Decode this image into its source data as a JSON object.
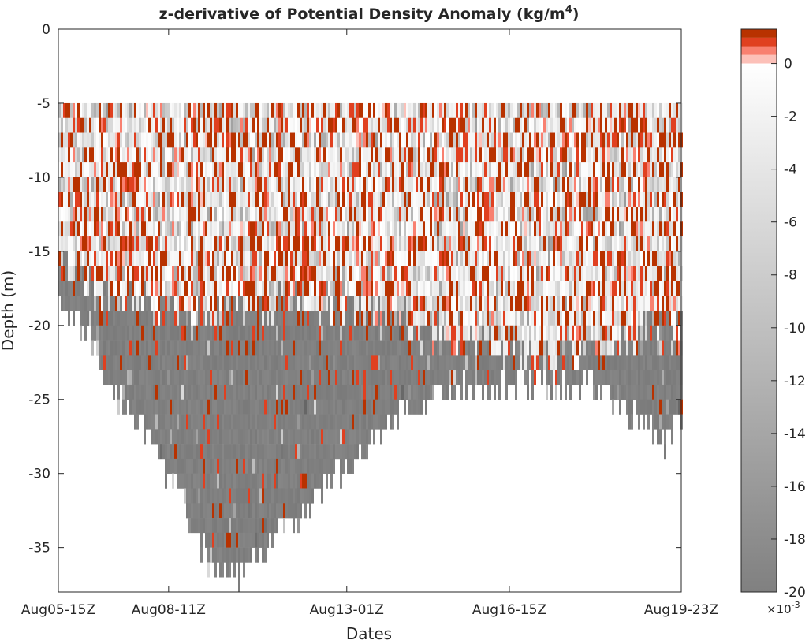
{
  "chart_data": {
    "type": "heatmap",
    "title": "z-derivative of Potential Density Anomaly (kg/m",
    "title_superscript": "4",
    "title_suffix": ")",
    "xlabel": "Dates",
    "ylabel": "Depth  (m)",
    "xlim": [
      0,
      100
    ],
    "ylim": [
      -38,
      0
    ],
    "x_ticks": [
      {
        "value": 0,
        "label": "Aug05-15Z"
      },
      {
        "value": 17.7,
        "label": "Aug08-11Z"
      },
      {
        "value": 46.3,
        "label": "Aug13-01Z"
      },
      {
        "value": 72.4,
        "label": "Aug16-15Z"
      },
      {
        "value": 100,
        "label": "Aug19-23Z"
      }
    ],
    "y_ticks": [
      0,
      -5,
      -10,
      -15,
      -20,
      -25,
      -30,
      -35
    ],
    "y_tick_labels": [
      "0",
      "-5",
      "-10",
      "-15",
      "-20",
      "-25",
      "-30",
      "-35"
    ],
    "top_depth": -5,
    "bottom_depth_profile": {
      "x": [
        0,
        5,
        10,
        15,
        20,
        24,
        28,
        33,
        38,
        45,
        52,
        58,
        65,
        75,
        85,
        92,
        97,
        100
      ],
      "depth": [
        -18,
        -21,
        -25,
        -28,
        -32,
        -36,
        -37,
        -35,
        -33,
        -30,
        -27,
        -25,
        -24,
        -24,
        -24,
        -26,
        -28,
        -26
      ]
    },
    "mixed_layer_profile": {
      "x": [
        0,
        5,
        20,
        40,
        55,
        65,
        80,
        95,
        100
      ],
      "depth": [
        -15,
        -17,
        -19,
        -18,
        -19,
        -21,
        -22,
        -20,
        -20
      ]
    },
    "colorbar": {
      "range": [
        -0.02,
        0.0013
      ],
      "ticks": [
        0,
        -2,
        -4,
        -6,
        -8,
        -10,
        -12,
        -14,
        -16,
        -18,
        -20
      ],
      "tick_labels": [
        "0",
        "-2",
        "-4",
        "-6",
        "-8",
        "-10",
        "-12",
        "-14",
        "-16",
        "-18",
        "-20"
      ],
      "multiplier_base": "×10",
      "multiplier_exp": "-3",
      "positive_colors": [
        "#fcc0b8",
        "#f88070",
        "#e04020",
        "#b83200"
      ],
      "negative_gradient": [
        "#ffffff",
        "#808080"
      ]
    }
  }
}
